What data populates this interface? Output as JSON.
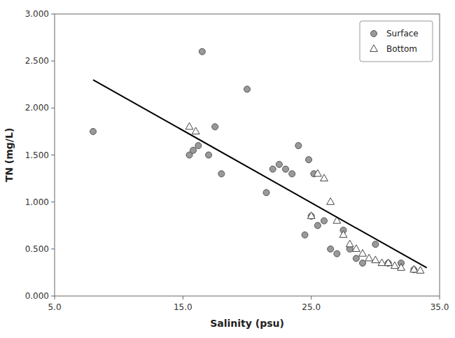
{
  "chart_data": {
    "type": "scatter",
    "xlabel": "Salinity (psu)",
    "ylabel": "TN (mg/L)",
    "xlim": [
      5.0,
      35.0
    ],
    "ylim": [
      0.0,
      3.0
    ],
    "xticks": [
      {
        "value": 5.0,
        "label": "5.0"
      },
      {
        "value": 15.0,
        "label": "15.0"
      },
      {
        "value": 25.0,
        "label": "25.0"
      },
      {
        "value": 35.0,
        "label": "35.0"
      }
    ],
    "yticks": [
      {
        "value": 0.0,
        "label": "0.000"
      },
      {
        "value": 0.5,
        "label": "0.500"
      },
      {
        "value": 1.0,
        "label": "1.000"
      },
      {
        "value": 1.5,
        "label": "1.500"
      },
      {
        "value": 2.0,
        "label": "2.000"
      },
      {
        "value": 2.5,
        "label": "2.500"
      },
      {
        "value": 3.0,
        "label": "3.000"
      }
    ],
    "grid": false,
    "legend": "upper right",
    "series": [
      {
        "name": "Surface",
        "type": "scatter",
        "color": "#999999",
        "marker": "circle",
        "x": [
          8.0,
          15.5,
          15.8,
          16.2,
          16.5,
          17.0,
          17.5,
          18.0,
          20.0,
          21.5,
          22.0,
          22.5,
          23.0,
          23.5,
          24.0,
          24.5,
          24.8,
          25.0,
          25.2,
          25.5,
          26.0,
          26.5,
          27.0,
          27.5,
          28.0,
          28.5,
          29.0,
          30.0,
          31.0,
          32.0,
          33.0
        ],
        "values": [
          1.75,
          1.5,
          1.55,
          1.6,
          2.6,
          1.5,
          1.8,
          1.3,
          2.2,
          1.1,
          1.35,
          1.4,
          1.35,
          1.3,
          1.6,
          0.65,
          1.45,
          0.85,
          1.3,
          0.75,
          0.8,
          0.5,
          0.45,
          0.7,
          0.5,
          0.4,
          0.35,
          0.55,
          0.35,
          0.35,
          0.28
        ]
      },
      {
        "name": "Bottom",
        "type": "scatter",
        "color": "#ffffff",
        "marker": "triangle",
        "x": [
          15.5,
          16.0,
          25.0,
          25.5,
          26.0,
          26.5,
          27.0,
          27.5,
          28.0,
          28.5,
          29.0,
          29.5,
          30.0,
          30.5,
          31.0,
          31.5,
          32.0,
          33.0,
          33.5
        ],
        "values": [
          1.8,
          1.75,
          0.85,
          1.3,
          1.25,
          1.0,
          0.8,
          0.65,
          0.55,
          0.5,
          0.45,
          0.4,
          0.38,
          0.35,
          0.35,
          0.32,
          0.3,
          0.28,
          0.27
        ]
      },
      {
        "type": "line",
        "color": "#000000",
        "line_style": "solid",
        "x": [
          8.0,
          34.0
        ],
        "values": [
          2.3,
          0.3
        ]
      }
    ]
  }
}
